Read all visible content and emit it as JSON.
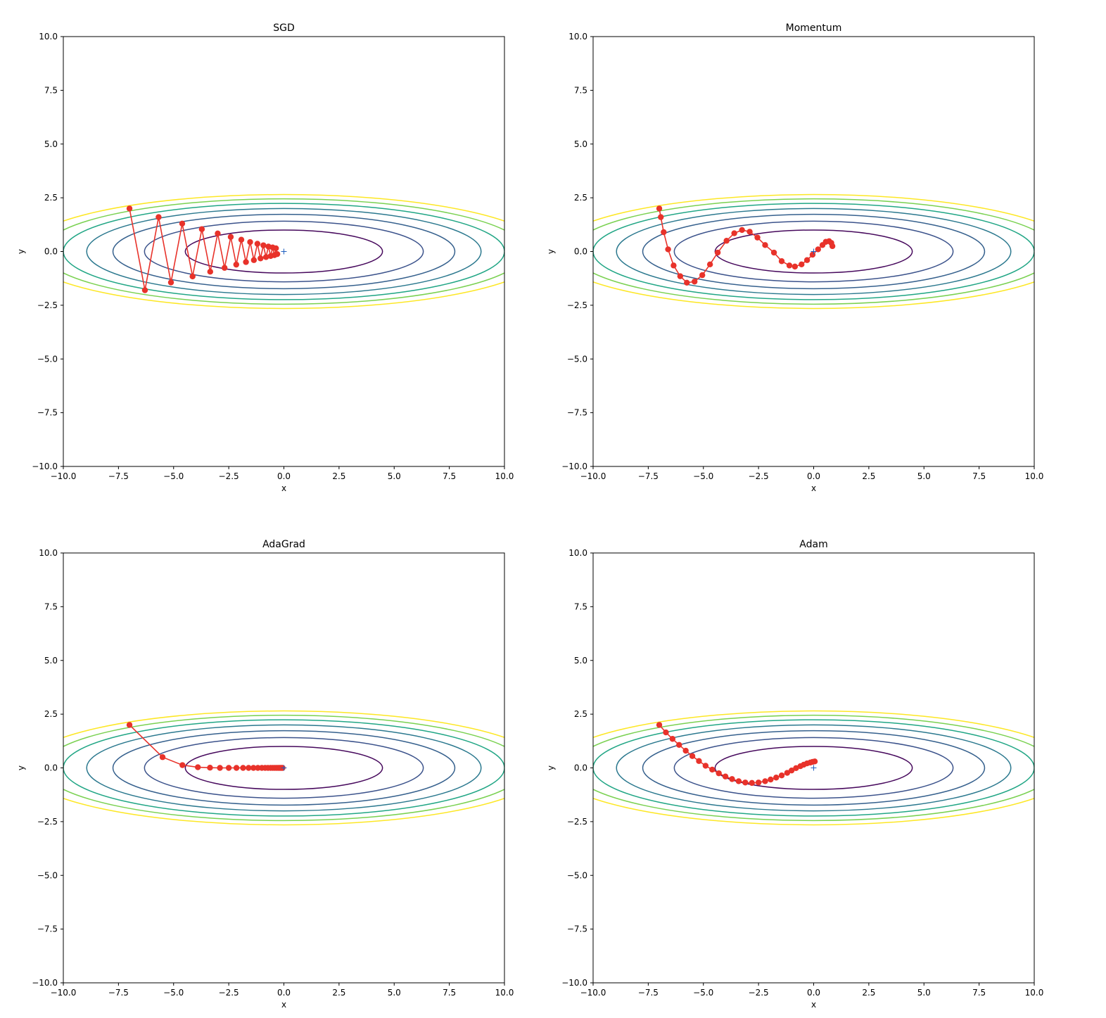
{
  "chart_data": [
    {
      "type": "line",
      "title": "SGD",
      "xlabel": "x",
      "ylabel": "y",
      "xlim": [
        -10,
        10
      ],
      "ylim": [
        -10,
        10
      ],
      "xticks": [
        "−10.0",
        "−7.5",
        "−5.0",
        "−2.5",
        "0.0",
        "2.5",
        "5.0",
        "7.5",
        "10.0"
      ],
      "yticks": [
        "−10.0",
        "−7.5",
        "−5.0",
        "−2.5",
        "0.0",
        "2.5",
        "5.0",
        "7.5",
        "10.0"
      ],
      "minimum": [
        0,
        0
      ],
      "path": {
        "color": "#e8322a",
        "x": [
          -7.0,
          -6.3,
          -5.68,
          -5.12,
          -4.61,
          -4.14,
          -3.72,
          -3.34,
          -3.0,
          -2.69,
          -2.41,
          -2.16,
          -1.93,
          -1.72,
          -1.53,
          -1.36,
          -1.2,
          -1.06,
          -0.93,
          -0.81,
          -0.7,
          -0.6,
          -0.51,
          -0.43,
          -0.36,
          -0.3
        ],
        "y": [
          2.0,
          -1.8,
          1.6,
          -1.44,
          1.3,
          -1.16,
          1.04,
          -0.94,
          0.84,
          -0.76,
          0.68,
          -0.61,
          0.55,
          -0.49,
          0.44,
          -0.4,
          0.36,
          -0.32,
          0.29,
          -0.26,
          0.23,
          -0.21,
          0.19,
          -0.17,
          0.15,
          -0.12
        ]
      }
    },
    {
      "type": "line",
      "title": "Momentum",
      "xlabel": "x",
      "ylabel": "y",
      "xlim": [
        -10,
        10
      ],
      "ylim": [
        -10,
        10
      ],
      "xticks": [
        "−10.0",
        "−7.5",
        "−5.0",
        "−2.5",
        "0.0",
        "2.5",
        "5.0",
        "7.5",
        "10.0"
      ],
      "yticks": [
        "−10.0",
        "−7.5",
        "−5.0",
        "−2.5",
        "0.0",
        "2.5",
        "5.0",
        "7.5",
        "10.0"
      ],
      "minimum": [
        0,
        0
      ],
      "path": {
        "color": "#e8322a",
        "x": [
          -7.0,
          -6.93,
          -6.8,
          -6.6,
          -6.35,
          -6.05,
          -5.75,
          -5.4,
          -5.05,
          -4.7,
          -4.35,
          -3.95,
          -3.6,
          -3.25,
          -2.9,
          -2.55,
          -2.2,
          -1.8,
          -1.45,
          -1.1,
          -0.85,
          -0.55,
          -0.3,
          -0.05,
          0.2,
          0.4,
          0.55,
          0.7,
          0.8,
          0.85
        ],
        "y": [
          2.0,
          1.6,
          0.9,
          0.1,
          -0.65,
          -1.15,
          -1.45,
          -1.4,
          -1.1,
          -0.6,
          -0.05,
          0.5,
          0.85,
          1.0,
          0.92,
          0.65,
          0.3,
          -0.05,
          -0.45,
          -0.65,
          -0.7,
          -0.6,
          -0.4,
          -0.15,
          0.1,
          0.3,
          0.45,
          0.48,
          0.4,
          0.25
        ]
      }
    },
    {
      "type": "line",
      "title": "AdaGrad",
      "xlabel": "x",
      "ylabel": "y",
      "xlim": [
        -10,
        10
      ],
      "ylim": [
        -10,
        10
      ],
      "xticks": [
        "−10.0",
        "−7.5",
        "−5.0",
        "−2.5",
        "0.0",
        "2.5",
        "5.0",
        "7.5",
        "10.0"
      ],
      "yticks": [
        "−10.0",
        "−7.5",
        "−5.0",
        "−2.5",
        "0.0",
        "2.5",
        "5.0",
        "7.5",
        "10.0"
      ],
      "minimum": [
        0,
        0
      ],
      "path": {
        "color": "#e8322a",
        "x": [
          -7.0,
          -5.5,
          -4.6,
          -3.9,
          -3.35,
          -2.9,
          -2.5,
          -2.15,
          -1.85,
          -1.6,
          -1.38,
          -1.18,
          -1.0,
          -0.85,
          -0.72,
          -0.6,
          -0.5,
          -0.41,
          -0.33,
          -0.26,
          -0.2,
          -0.15,
          -0.1,
          -0.06
        ],
        "y": [
          2.0,
          0.5,
          0.13,
          0.03,
          0.01,
          0.0,
          0.0,
          0.0,
          0.0,
          0.0,
          0.0,
          0.0,
          0.0,
          0.0,
          0.0,
          0.0,
          0.0,
          0.0,
          0.0,
          0.0,
          0.0,
          0.0,
          0.0,
          0.0
        ]
      }
    },
    {
      "type": "line",
      "title": "Adam",
      "xlabel": "x",
      "ylabel": "y",
      "xlim": [
        -10,
        10
      ],
      "ylim": [
        -10,
        10
      ],
      "xticks": [
        "−10.0",
        "−7.5",
        "−5.0",
        "−2.5",
        "0.0",
        "2.5",
        "5.0",
        "7.5",
        "10.0"
      ],
      "yticks": [
        "−10.0",
        "−7.5",
        "−5.0",
        "−2.5",
        "0.0",
        "2.5",
        "5.0",
        "7.5",
        "10.0"
      ],
      "minimum": [
        0,
        0
      ],
      "path": {
        "color": "#e8322a",
        "x": [
          -7.0,
          -6.7,
          -6.4,
          -6.1,
          -5.8,
          -5.5,
          -5.2,
          -4.9,
          -4.6,
          -4.3,
          -4.0,
          -3.7,
          -3.4,
          -3.1,
          -2.8,
          -2.5,
          -2.2,
          -1.95,
          -1.7,
          -1.45,
          -1.2,
          -1.0,
          -0.8,
          -0.6,
          -0.45,
          -0.3,
          -0.15,
          -0.05,
          0.05
        ],
        "y": [
          2.0,
          1.65,
          1.35,
          1.07,
          0.8,
          0.55,
          0.32,
          0.1,
          -0.08,
          -0.25,
          -0.4,
          -0.52,
          -0.62,
          -0.68,
          -0.7,
          -0.68,
          -0.62,
          -0.54,
          -0.45,
          -0.35,
          -0.23,
          -0.12,
          -0.01,
          0.08,
          0.15,
          0.21,
          0.25,
          0.28,
          0.3
        ]
      }
    }
  ]
}
